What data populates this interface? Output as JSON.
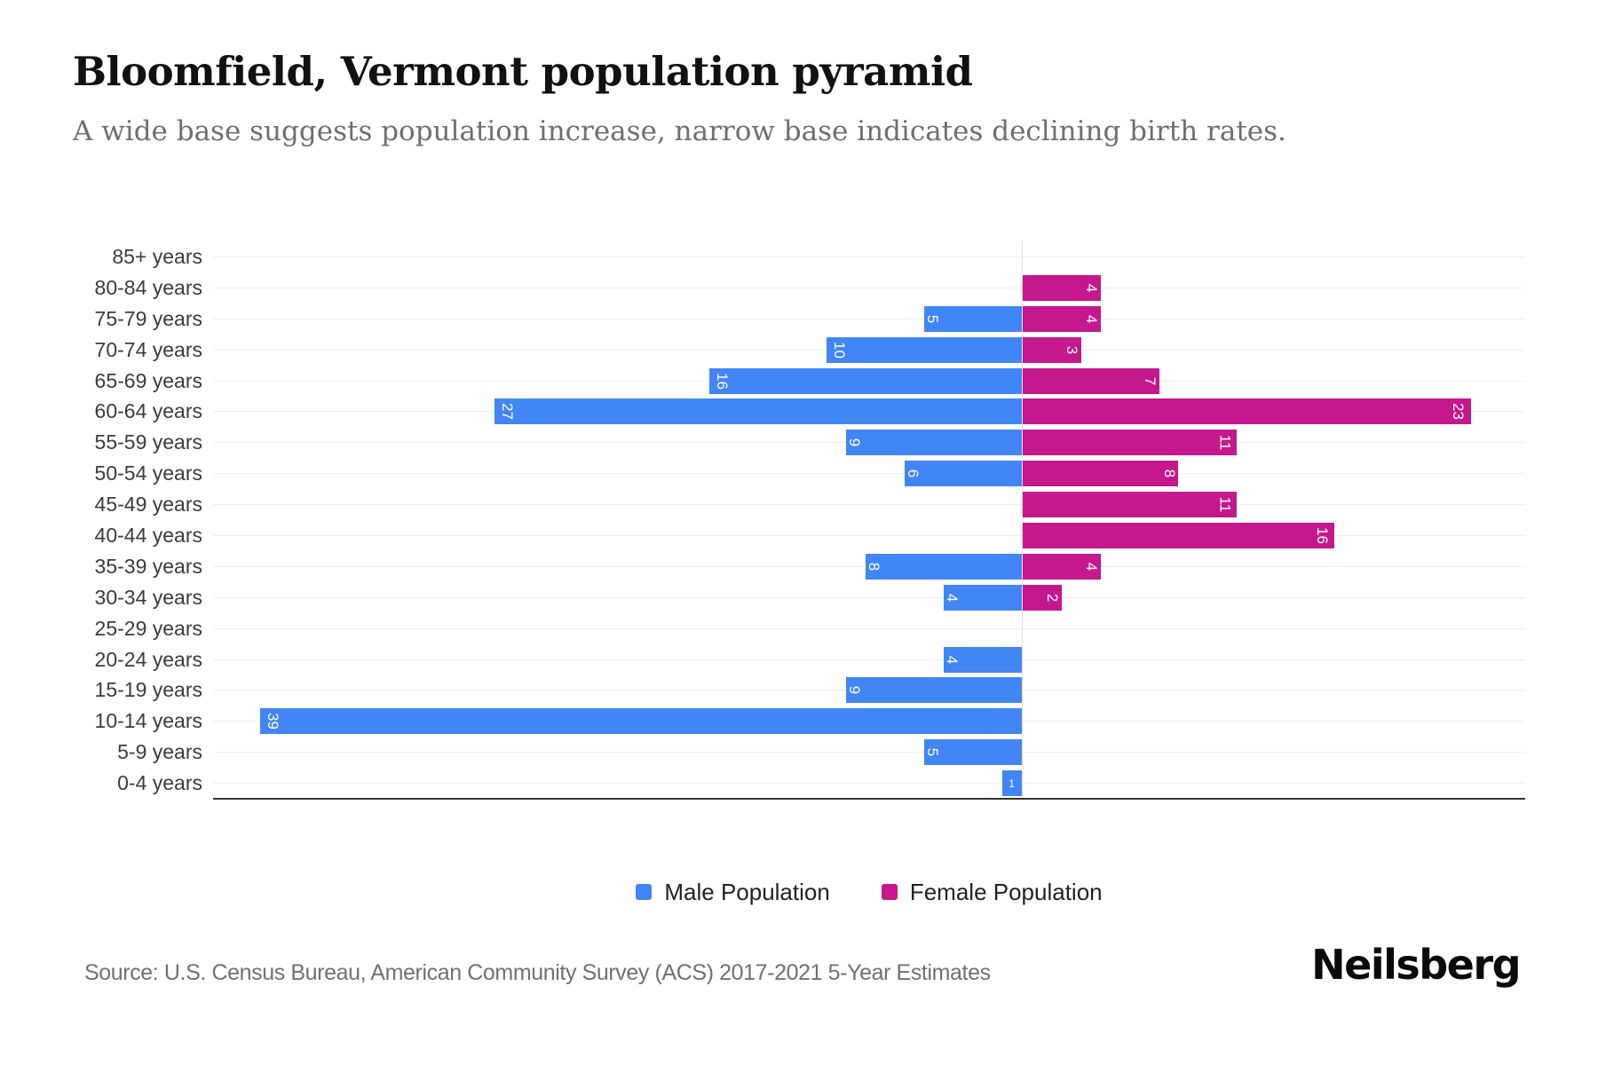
{
  "header": {
    "title": "Bloomfield, Vermont population pyramid",
    "subtitle": "A wide base suggests population increase, narrow base indicates declining birth rates."
  },
  "chart_data": {
    "type": "bar",
    "subtype": "population-pyramid",
    "orientation": "horizontal",
    "title": "Bloomfield, Vermont population pyramid",
    "categories": [
      "85+ years",
      "80-84 years",
      "75-79 years",
      "70-74 years",
      "65-69 years",
      "60-64 years",
      "55-59 years",
      "50-54 years",
      "45-49 years",
      "40-44 years",
      "35-39 years",
      "30-34 years",
      "25-29 years",
      "20-24 years",
      "15-19 years",
      "10-14 years",
      "5-9 years",
      "0-4 years"
    ],
    "series": [
      {
        "name": "Male Population",
        "side": "left",
        "color": "#4285F4",
        "values": [
          0,
          0,
          5,
          10,
          16,
          27,
          9,
          6,
          0,
          0,
          8,
          4,
          0,
          4,
          9,
          39,
          5,
          1
        ]
      },
      {
        "name": "Female Population",
        "side": "right",
        "color": "#C4188C",
        "values": [
          0,
          4,
          4,
          3,
          7,
          23,
          11,
          8,
          11,
          16,
          4,
          2,
          0,
          0,
          0,
          0,
          0,
          0
        ]
      }
    ],
    "axis": {
      "left_max": 41.4,
      "right_max": 25.8,
      "grid": true
    },
    "legend_position": "bottom-center",
    "bar_value_labels": "inside-end, white, rotated 90deg"
  },
  "footer": {
    "source": "Source: U.S. Census Bureau, American Community Survey (ACS) 2017-2021 5-Year Estimates",
    "brand": "Neilsberg"
  }
}
